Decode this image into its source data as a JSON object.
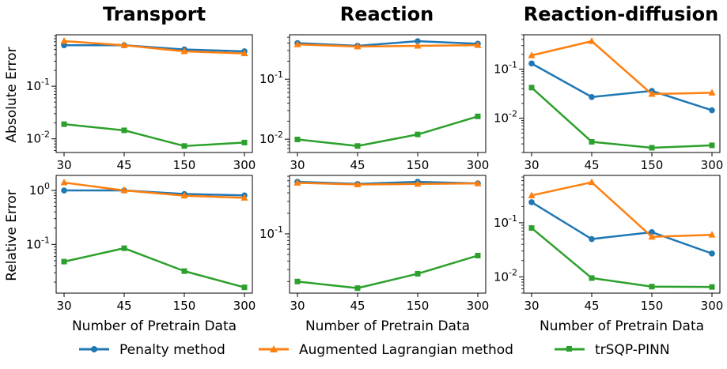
{
  "colors": {
    "penalty": "#1f77b4",
    "augmented": "#ff7f0e",
    "trsqp": "#2ca02c"
  },
  "legend": [
    {
      "name": "Penalty method",
      "marker": "circle",
      "color": "#1f77b4"
    },
    {
      "name": "Augmented Lagrangian method",
      "marker": "triangle",
      "color": "#ff7f0e"
    },
    {
      "name": "trSQP-PINN",
      "marker": "square",
      "color": "#2ca02c"
    }
  ],
  "column_titles": [
    "Transport",
    "Reaction",
    "Reaction-diffusion"
  ],
  "row_labels": [
    "Absolute Error",
    "Relative Error"
  ],
  "xlabel": "Number of Pretrain Data",
  "chart_data": [
    {
      "type": "line",
      "panel": "transport-absolute",
      "yscale": "log",
      "categories": [
        "30",
        "45",
        "150",
        "300"
      ],
      "ylim": [
        0.0055,
        0.95
      ],
      "yticks": [
        {
          "v": 0.1,
          "label": "10^-1"
        },
        {
          "v": 0.01,
          "label": "10^-2"
        }
      ],
      "series": [
        {
          "name": "Penalty method",
          "values": [
            0.6,
            0.6,
            0.5,
            0.46
          ]
        },
        {
          "name": "Augmented Lagrangian method",
          "values": [
            0.72,
            0.6,
            0.46,
            0.42
          ]
        },
        {
          "name": "trSQP-PINN",
          "values": [
            0.019,
            0.0145,
            0.0073,
            0.0085
          ]
        }
      ]
    },
    {
      "type": "line",
      "panel": "reaction-absolute",
      "yscale": "log",
      "categories": [
        "30",
        "45",
        "150",
        "300"
      ],
      "ylim": [
        0.006,
        0.55
      ],
      "yticks": [
        {
          "v": 0.1,
          "label": "10^-1"
        },
        {
          "v": 0.01,
          "label": "10^-2"
        }
      ],
      "series": [
        {
          "name": "Penalty method",
          "values": [
            0.4,
            0.36,
            0.43,
            0.39
          ]
        },
        {
          "name": "Augmented Lagrangian method",
          "values": [
            0.38,
            0.35,
            0.36,
            0.37
          ]
        },
        {
          "name": "trSQP-PINN",
          "values": [
            0.0099,
            0.0077,
            0.012,
            0.024
          ]
        }
      ]
    },
    {
      "type": "line",
      "panel": "reaction-diffusion-absolute",
      "yscale": "log",
      "categories": [
        "30",
        "45",
        "150",
        "300"
      ],
      "ylim": [
        0.002,
        0.5
      ],
      "yticks": [
        {
          "v": 0.1,
          "label": "10^-1"
        },
        {
          "v": 0.01,
          "label": "10^-2"
        }
      ],
      "series": [
        {
          "name": "Penalty method",
          "values": [
            0.13,
            0.027,
            0.036,
            0.0145
          ]
        },
        {
          "name": "Augmented Lagrangian method",
          "values": [
            0.19,
            0.37,
            0.031,
            0.033
          ]
        },
        {
          "name": "trSQP-PINN",
          "values": [
            0.042,
            0.0033,
            0.0025,
            0.0028
          ]
        }
      ]
    },
    {
      "type": "line",
      "panel": "transport-relative",
      "yscale": "log",
      "categories": [
        "30",
        "45",
        "150",
        "300"
      ],
      "ylim": [
        0.0125,
        1.9
      ],
      "yticks": [
        {
          "v": 1,
          "label": "10^0"
        },
        {
          "v": 0.1,
          "label": "10^-1"
        }
      ],
      "series": [
        {
          "name": "Penalty method",
          "values": [
            1.0,
            1.0,
            0.86,
            0.81
          ]
        },
        {
          "name": "Augmented Lagrangian method",
          "values": [
            1.4,
            1.0,
            0.8,
            0.73
          ]
        },
        {
          "name": "trSQP-PINN",
          "values": [
            0.048,
            0.085,
            0.032,
            0.016
          ]
        }
      ]
    },
    {
      "type": "line",
      "panel": "reaction-relative",
      "yscale": "log",
      "categories": [
        "30",
        "45",
        "150",
        "300"
      ],
      "ylim": [
        0.0135,
        0.72
      ],
      "yticks": [
        {
          "v": 0.1,
          "label": "10^-1"
        }
      ],
      "series": [
        {
          "name": "Penalty method",
          "values": [
            0.58,
            0.54,
            0.58,
            0.55
          ]
        },
        {
          "name": "Augmented Lagrangian method",
          "values": [
            0.56,
            0.53,
            0.54,
            0.55
          ]
        },
        {
          "name": "trSQP-PINN",
          "values": [
            0.02,
            0.016,
            0.026,
            0.048
          ]
        }
      ]
    },
    {
      "type": "line",
      "panel": "reaction-diffusion-relative",
      "yscale": "log",
      "categories": [
        "30",
        "45",
        "150",
        "300"
      ],
      "ylim": [
        0.005,
        0.75
      ],
      "yticks": [
        {
          "v": 0.1,
          "label": "10^-1"
        },
        {
          "v": 0.01,
          "label": "10^-2"
        }
      ],
      "series": [
        {
          "name": "Penalty method",
          "values": [
            0.24,
            0.05,
            0.067,
            0.027
          ]
        },
        {
          "name": "Augmented Lagrangian method",
          "values": [
            0.32,
            0.56,
            0.055,
            0.06
          ]
        },
        {
          "name": "trSQP-PINN",
          "values": [
            0.08,
            0.0095,
            0.0066,
            0.0065
          ]
        }
      ]
    }
  ]
}
